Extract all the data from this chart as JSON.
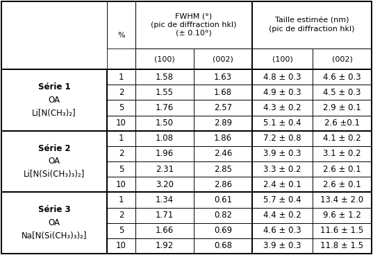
{
  "series": [
    {
      "label_lines": [
        "Série 1",
        "OA",
        "Li[N(CH₃)₂]"
      ],
      "label_bold_line": 0,
      "rows": [
        [
          "1",
          "1.58",
          "1.63",
          "4.8 ± 0.3",
          "4.6 ± 0.3"
        ],
        [
          "2",
          "1.55",
          "1.68",
          "4.9 ± 0.3",
          "4.5 ± 0.3"
        ],
        [
          "5",
          "1.76",
          "2.57",
          "4.3 ± 0.2",
          "2.9 ± 0.1"
        ],
        [
          "10",
          "1.50",
          "2.89",
          "5.1 ± 0.4",
          "2.6 ±0.1"
        ]
      ]
    },
    {
      "label_lines": [
        "Série 2",
        "OA",
        "Li[N(Si(CH₃)₃)₂]"
      ],
      "label_bold_line": 0,
      "rows": [
        [
          "1",
          "1.08",
          "1.86",
          "7.2 ± 0.8",
          "4.1 ± 0.2"
        ],
        [
          "2",
          "1.96",
          "2.46",
          "3.9 ± 0.3",
          "3.1 ± 0.2"
        ],
        [
          "5",
          "2.31",
          "2.85",
          "3.3 ± 0.2",
          "2.6 ± 0.1"
        ],
        [
          "10",
          "3.20",
          "2.86",
          "2.4 ± 0.1",
          "2.6 ± 0.1"
        ]
      ]
    },
    {
      "label_lines": [
        "Série 3",
        "OA",
        "Na[N(Si(CH₃)₃)₂]"
      ],
      "label_bold_line": 0,
      "rows": [
        [
          "1",
          "1.34",
          "0.61",
          "5.7 ± 0.4",
          "13.4 ± 2.0"
        ],
        [
          "2",
          "1.71",
          "0.82",
          "4.4 ± 0.2",
          "9.6 ± 1.2"
        ],
        [
          "5",
          "1.66",
          "0.69",
          "4.6 ± 0.3",
          "11.6 ± 1.5"
        ],
        [
          "10",
          "1.92",
          "0.68",
          "3.9 ± 0.3",
          "11.8 ± 1.5"
        ]
      ]
    }
  ],
  "fwhm_header": "FWHM (°)\n(pic de diffraction hkl)\n(± 0.10°)",
  "taille_header": "Taille estimée (nm)\n(pic de diffraction hkl)",
  "sub_headers": [
    "(100)",
    "(002)",
    "(100)",
    "(002)"
  ],
  "pct_label": "%",
  "bg_color": "#ffffff",
  "border_color": "#000000",
  "lw_thin": 0.6,
  "lw_thick": 1.4,
  "header_fontsize": 8.0,
  "cell_fontsize": 8.5,
  "label_fontsize": 8.5
}
